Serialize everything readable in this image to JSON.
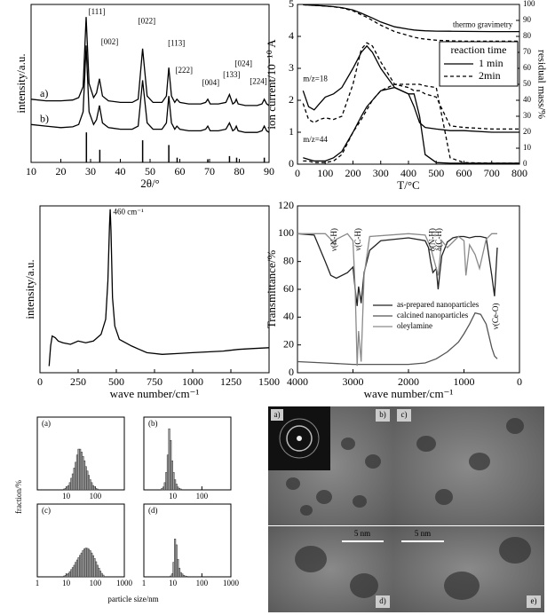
{
  "chart_data": [
    {
      "type": "line",
      "xlabel": "2θ/°",
      "ylabel": "intensity/a.u.",
      "xlim": [
        10,
        90
      ],
      "xticks": [
        10,
        20,
        30,
        40,
        50,
        60,
        70,
        80,
        90
      ],
      "ylim": [
        0,
        100
      ],
      "x": [
        10,
        15,
        20,
        24,
        26,
        27.5,
        28.5,
        29.5,
        31,
        32,
        33,
        34,
        36,
        40,
        44,
        46,
        47.5,
        49,
        51,
        54,
        55.5,
        56.3,
        57.2,
        58.3,
        59,
        60,
        63,
        67,
        68.7,
        69.4,
        70.2,
        73,
        75.5,
        76.7,
        77.8,
        78.5,
        79,
        79.6,
        82,
        86,
        87.6,
        88.4,
        89.2,
        90
      ],
      "series": [
        {
          "label": "a)",
          "label_x": 13,
          "label_y": 43,
          "color": "#000000",
          "values": [
            40,
            39,
            39,
            39.5,
            41,
            48,
            92,
            50,
            41,
            44,
            53,
            42,
            39,
            38,
            38,
            40,
            72,
            42,
            38,
            38,
            42,
            60,
            42,
            38,
            40,
            38,
            37,
            37,
            38,
            40,
            37,
            37,
            38,
            43,
            37,
            38,
            40,
            37,
            36,
            36,
            37,
            40,
            37,
            36
          ]
        },
        {
          "label": "b)",
          "label_x": 13,
          "label_y": 27,
          "color": "#000000",
          "values": [
            24,
            23,
            22,
            22.5,
            24,
            32,
            74,
            32,
            24,
            27,
            36,
            25,
            22,
            21,
            21,
            23,
            52,
            25,
            21,
            21,
            25,
            42,
            25,
            21,
            23,
            21,
            20,
            20,
            21,
            23,
            20,
            20,
            21,
            25,
            20,
            21,
            23,
            20,
            19,
            19,
            20,
            23,
            20,
            19
          ]
        }
      ],
      "sticks": {
        "x": [
          28.6,
          33.1,
          47.5,
          56.3,
          59.1,
          69.4,
          76.7,
          79.1,
          88.4
        ],
        "values": [
          19,
          8,
          14,
          11,
          3,
          2,
          4,
          3,
          3
        ]
      },
      "annotations": [
        {
          "text": "[111]",
          "x": 29.3,
          "y": 95
        },
        {
          "text": "[002]",
          "x": 33.5,
          "y": 76
        },
        {
          "text": "[022]",
          "x": 46,
          "y": 89
        },
        {
          "text": "[113]",
          "x": 56,
          "y": 75
        },
        {
          "text": "[222]",
          "x": 58.5,
          "y": 58
        },
        {
          "text": "[004]",
          "x": 67.5,
          "y": 50
        },
        {
          "text": "[133]",
          "x": 74.5,
          "y": 55
        },
        {
          "text": "[024]",
          "x": 78.5,
          "y": 62
        },
        {
          "text": "[224]",
          "x": 83.5,
          "y": 51
        }
      ]
    },
    {
      "type": "line",
      "xlabel": "T/°C",
      "ylabel": "ion current/10⁻¹⁰ A",
      "y2label": "residual mass/%",
      "xlim": [
        0,
        800
      ],
      "xticks": [
        0,
        100,
        200,
        300,
        400,
        500,
        600,
        700,
        800
      ],
      "ylim": [
        0,
        5
      ],
      "yticks": [
        0,
        1,
        2,
        3,
        4,
        5
      ],
      "y2lim": [
        0,
        100
      ],
      "y2ticks": [
        0,
        10,
        20,
        30,
        40,
        50,
        60,
        70,
        80,
        90,
        100
      ],
      "x": [
        20,
        40,
        60,
        80,
        100,
        130,
        160,
        200,
        230,
        250,
        270,
        300,
        350,
        400,
        420,
        440,
        460,
        500,
        550,
        600,
        700,
        800
      ],
      "series": [
        {
          "axis": "y2",
          "dash": "solid",
          "color": "#000000",
          "values": [
            99.8,
            99.6,
            99.4,
            99.2,
            99,
            98.6,
            98,
            96.5,
            94.5,
            93,
            91.5,
            89,
            86,
            84.5,
            84,
            83.7,
            83.5,
            83.3,
            83.2,
            83.1,
            83,
            83
          ]
        },
        {
          "axis": "y2",
          "dash": "dashed",
          "color": "#000000",
          "values": [
            99.8,
            99.6,
            99.4,
            99.2,
            99,
            98.5,
            97.8,
            96,
            93.5,
            92,
            90,
            87,
            83,
            80.5,
            79.5,
            78.8,
            78.3,
            77.6,
            77.2,
            77,
            77,
            77
          ]
        },
        {
          "dash": "solid",
          "color": "#000000",
          "values": [
            2.3,
            1.8,
            1.7,
            1.9,
            2.1,
            2.2,
            2.4,
            3.0,
            3.5,
            3.7,
            3.5,
            3.0,
            2.4,
            2.2,
            1.8,
            1.3,
            1.15,
            1.1,
            1.05,
            1.05,
            1.0,
            1.0
          ]
        },
        {
          "dash": "dashed",
          "color": "#000000",
          "values": [
            1.9,
            1.4,
            1.3,
            1.4,
            1.45,
            1.4,
            1.5,
            2.5,
            3.6,
            3.8,
            3.7,
            3.2,
            2.5,
            2.4,
            2.3,
            2.3,
            2.2,
            2.1,
            1.2,
            1.15,
            1.1,
            1.1
          ]
        },
        {
          "dash": "solid",
          "color": "#000000",
          "values": [
            0.2,
            0.15,
            0.1,
            0.1,
            0.1,
            0.2,
            0.4,
            1.0,
            1.5,
            1.8,
            2.0,
            2.3,
            2.4,
            2.2,
            2.2,
            1.5,
            0.3,
            0.05,
            0.03,
            0.03,
            0.03,
            0.03
          ]
        },
        {
          "dash": "dashed",
          "color": "#000000",
          "values": [
            0.1,
            0.1,
            0.05,
            0.05,
            0.05,
            0.1,
            0.3,
            1.0,
            1.4,
            1.7,
            2.0,
            2.3,
            2.5,
            2.5,
            2.5,
            2.5,
            2.45,
            2.4,
            0.2,
            0.05,
            0.03,
            0.03
          ]
        }
      ],
      "legend": {
        "title": "reaction time",
        "entries": [
          {
            "label": "1 min",
            "dash": "solid"
          },
          {
            "label": "2min",
            "dash": "dashed"
          }
        ]
      },
      "annotations": [
        {
          "text": "thermo gravimetry",
          "x": 560,
          "y": 4.35
        },
        {
          "text": "m/z=18",
          "x": 20,
          "y": 2.65
        },
        {
          "text": "m/z=44",
          "x": 20,
          "y": 0.75
        }
      ]
    },
    {
      "type": "line",
      "xlabel": "wave number/cm⁻¹",
      "ylabel": "intensity/a.u.",
      "xlim": [
        0,
        1500
      ],
      "xticks": [
        0,
        250,
        500,
        750,
        1000,
        1250,
        1500
      ],
      "ylim": [
        0,
        100
      ],
      "x": [
        60,
        70,
        80,
        100,
        120,
        150,
        200,
        250,
        300,
        350,
        400,
        430,
        445,
        455,
        460,
        465,
        475,
        490,
        520,
        560,
        600,
        650,
        700,
        800,
        900,
        1000,
        1100,
        1200,
        1300,
        1400,
        1500
      ],
      "series": [
        {
          "color": "#000000",
          "values": [
            4,
            16,
            22,
            21,
            19,
            18,
            17,
            19,
            18,
            19,
            23,
            32,
            55,
            88,
            98,
            85,
            45,
            28,
            20,
            18,
            16,
            14,
            12,
            11,
            11.5,
            12,
            12.5,
            13,
            14,
            14.5,
            15
          ]
        }
      ],
      "annotations": [
        {
          "text": "460 cm⁻¹",
          "x": 480,
          "y": 96
        }
      ]
    },
    {
      "type": "line",
      "xlabel": "wave number/cm⁻¹",
      "ylabel": "Transmittance/%",
      "xlim": [
        4000,
        0
      ],
      "xticks": [
        4000,
        3000,
        2000,
        1000,
        0
      ],
      "ylim": [
        0,
        120
      ],
      "yticks": [
        0,
        20,
        40,
        60,
        80,
        100,
        120
      ],
      "series": [
        {
          "name": "as-prepared nanoparticles",
          "color": "#222222",
          "x": [
            4000,
            3700,
            3500,
            3400,
            3300,
            3100,
            3000,
            2960,
            2925,
            2900,
            2870,
            2853,
            2800,
            2700,
            2500,
            2000,
            1700,
            1640,
            1600,
            1560,
            1500,
            1465,
            1440,
            1400,
            1300,
            1200,
            1100,
            1000,
            900,
            800,
            700,
            600,
            500,
            450,
            400
          ],
          "values": [
            100,
            99,
            80,
            70,
            68,
            72,
            76,
            60,
            48,
            62,
            55,
            50,
            72,
            88,
            95,
            97,
            95,
            90,
            80,
            72,
            75,
            60,
            70,
            84,
            94,
            97,
            98,
            98,
            97,
            98,
            98,
            97,
            70,
            55,
            90
          ]
        },
        {
          "name": "calcined nanoparticles",
          "color": "#555555",
          "x": [
            4000,
            3500,
            3000,
            2500,
            2000,
            1700,
            1500,
            1300,
            1100,
            1000,
            900,
            800,
            700,
            600,
            500,
            450,
            400
          ],
          "values": [
            8,
            7,
            6,
            6,
            6,
            7,
            10,
            15,
            22,
            28,
            35,
            43,
            42,
            35,
            18,
            12,
            10
          ]
        },
        {
          "name": "oleylamine",
          "color": "#8a8a8a",
          "x": [
            4000,
            3500,
            3400,
            3330,
            3300,
            3100,
            3000,
            2960,
            2925,
            2900,
            2853,
            2800,
            2700,
            2000,
            1700,
            1600,
            1465,
            1400,
            1300,
            1100,
            1000,
            965,
            900,
            800,
            720,
            600,
            500,
            400
          ],
          "values": [
            100,
            100,
            96,
            92,
            96,
            100,
            95,
            60,
            5,
            30,
            8,
            70,
            98,
            100,
            99,
            90,
            70,
            95,
            90,
            98,
            95,
            70,
            92,
            85,
            75,
            96,
            100,
            100
          ]
        }
      ],
      "annotations": [
        {
          "text": "ν(N-H)",
          "x": 3330,
          "y": 104,
          "vertical": true
        },
        {
          "text": "ν(C-H)",
          "x": 2900,
          "y": 104,
          "vertical": true
        },
        {
          "text": "δ(N-H)",
          "x": 1560,
          "y": 104,
          "vertical": true
        },
        {
          "text": "δ(C-H)",
          "x": 1440,
          "y": 104,
          "vertical": true
        },
        {
          "text": "ν(Ce-O)",
          "x": 420,
          "y": 50,
          "vertical": true
        }
      ]
    },
    {
      "type": "histogram",
      "title": "(a)",
      "xscale": "log",
      "xlim": [
        1,
        1000
      ],
      "xticks": [
        10,
        100
      ],
      "ylim": [
        0,
        25
      ],
      "bins": [
        7.9,
        8.9,
        10,
        11.2,
        12.6,
        14.1,
        15.8,
        17.8,
        20,
        22.4,
        25.1,
        28.2,
        31.6,
        35.5,
        39.8,
        44.7,
        50.1,
        56.2,
        63.1,
        70.8,
        79.4,
        89.1,
        100,
        112,
        126
      ],
      "values": [
        0.3,
        0.5,
        1,
        1.5,
        2.5,
        4,
        5.5,
        7.5,
        9.5,
        12,
        14,
        14,
        13,
        11.5,
        10,
        8,
        6.5,
        5,
        3.5,
        2.5,
        1.5,
        1,
        0.5,
        0.3
      ]
    },
    {
      "type": "histogram",
      "title": "(b)",
      "xscale": "log",
      "xlim": [
        1,
        1000
      ],
      "xticks": [
        10,
        100
      ],
      "ylim": [
        0,
        25
      ],
      "bins": [
        3.98,
        4.47,
        5.01,
        5.62,
        6.31,
        7.08,
        7.94,
        8.91,
        10,
        11.2,
        12.6,
        14.1,
        15.8,
        17.8,
        20
      ],
      "values": [
        0.5,
        1,
        2.5,
        6,
        12,
        21,
        17,
        10,
        6,
        3.5,
        2,
        1,
        0.5,
        0.3
      ]
    },
    {
      "type": "histogram",
      "title": "(c)",
      "xscale": "log",
      "xlim": [
        1,
        1000
      ],
      "xticks": [
        1,
        10,
        100,
        1000
      ],
      "ylim": [
        0,
        25
      ],
      "bins": [
        7.94,
        8.91,
        10,
        11.2,
        12.6,
        14.1,
        15.8,
        17.8,
        20,
        22.4,
        25.1,
        28.2,
        31.6,
        35.5,
        39.8,
        44.7,
        50.1,
        56.2,
        63.1,
        70.8,
        79.4,
        89.1,
        100,
        112,
        126,
        141,
        158,
        178,
        200
      ],
      "values": [
        0.3,
        0.5,
        0.8,
        1.2,
        1.8,
        2.5,
        3.2,
        4,
        5,
        5.8,
        6.6,
        7.4,
        8.2,
        9,
        9.6,
        9.9,
        9.8,
        9.5,
        9,
        8.2,
        7.3,
        6.3,
        5.2,
        4,
        3,
        2,
        1.2,
        0.6
      ]
    },
    {
      "type": "histogram",
      "title": "(d)",
      "xscale": "log",
      "xlim": [
        1,
        1000
      ],
      "xticks": [
        1,
        10,
        100,
        1000
      ],
      "ylim": [
        0,
        25
      ],
      "bins": [
        7.94,
        8.91,
        10,
        11.2,
        12.6,
        14.1,
        15.8,
        17.8,
        20,
        22.4,
        25.1,
        28.2,
        31.6
      ],
      "values": [
        0.3,
        1,
        5,
        13,
        11,
        6,
        3,
        1.5,
        1,
        0.5,
        0.3,
        0.2
      ]
    }
  ],
  "histogram_axes": {
    "xlabel": "particle size/nm",
    "ylabel": "fraction/%"
  },
  "images": {
    "labels": [
      "a)",
      "b)",
      "c)",
      "d)",
      "e)"
    ],
    "scale_bars": [
      "5 nm",
      "5 nm"
    ]
  }
}
